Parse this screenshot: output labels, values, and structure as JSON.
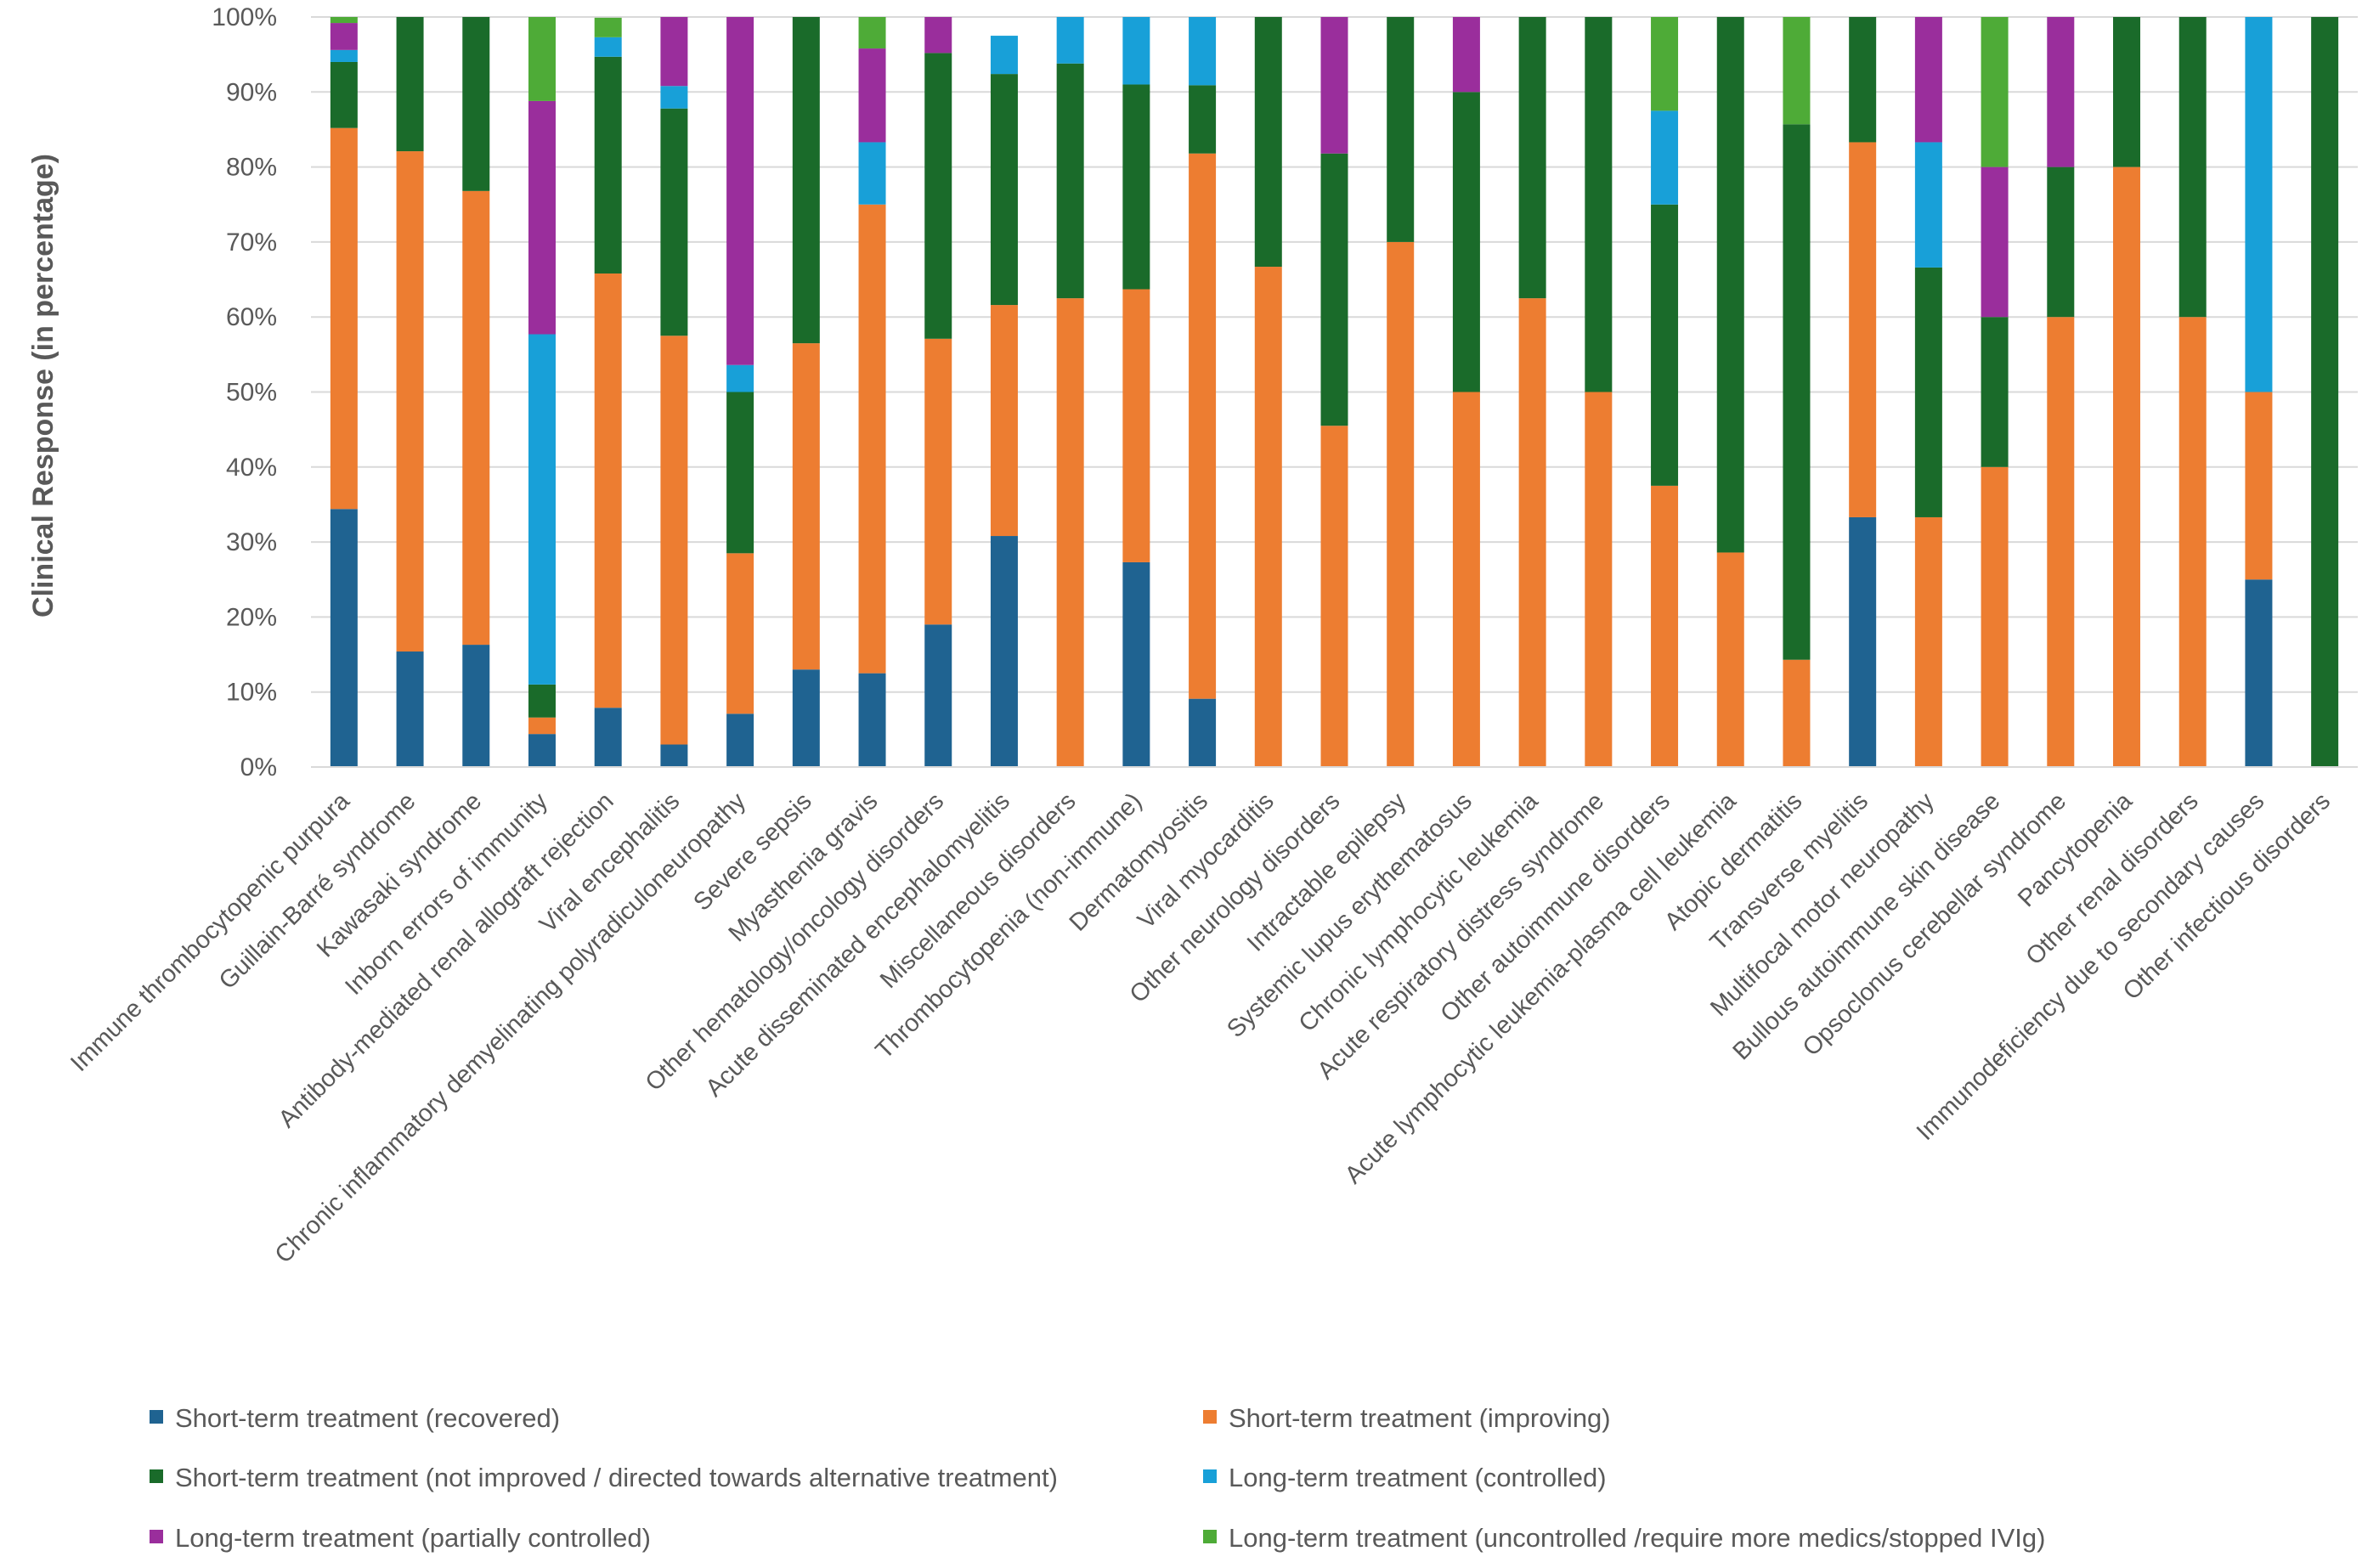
{
  "chart_data": {
    "type": "bar",
    "stacked": true,
    "title": "",
    "xlabel": "",
    "ylabel": "Clinical Response (in percentage)",
    "ylim": [
      0,
      100
    ],
    "yticks": [
      "0%",
      "10%",
      "20%",
      "30%",
      "40%",
      "50%",
      "60%",
      "70%",
      "80%",
      "90%",
      "100%"
    ],
    "legend_position": "bottom",
    "categories": [
      "Immune thrombocytopenic purpura",
      "Guillain-Barré syndrome",
      "Kawasaki syndrome",
      "Inborn errors of immunity",
      "Antibody-mediated renal allograft rejection",
      "Viral encephalitis",
      "Chronic inflammatory demyelinating polyradiculoneuropathy",
      "Severe sepsis",
      "Myasthenia gravis",
      "Other hematology/oncology disorders",
      "Acute disseminated encephalomyelitis",
      "Miscellaneous disorders",
      "Thrombocytopenia (non-immune)",
      "Dermatomyositis",
      "Viral myocarditis",
      "Other neurology disorders",
      "Intractable epilepsy",
      "Systemic lupus erythematosus",
      "Chronic lymphocytic leukemia",
      "Acute respiratory distress syndrome",
      "Other autoimmune disorders",
      "Acute lymphocytic leukemia-plasma cell leukemia",
      "Atopic dermatitis",
      "Transverse myelitis",
      "Multifocal motor neuropathy",
      "Bullous autoimmune skin disease",
      "Opsoclonus cerebellar syndrome",
      "Pancytopenia",
      "Other renal disorders",
      "Immunodeficiency due to secondary causes",
      "Other infectious disorders"
    ],
    "series": [
      {
        "name": "Short-term treatment (recovered)",
        "color": "#1F6391",
        "values": [
          34.4,
          15.4,
          16.3,
          4.4,
          7.9,
          3.0,
          7.1,
          13.0,
          12.5,
          19.0,
          30.8,
          0,
          27.3,
          9.1,
          0,
          0,
          0,
          0,
          0,
          0,
          0,
          0,
          0,
          33.3,
          0,
          0,
          0,
          0,
          0,
          25.0,
          0
        ]
      },
      {
        "name": "Short-term treatment (improving)",
        "color": "#ED7D31",
        "values": [
          50.8,
          66.7,
          60.5,
          2.2,
          57.9,
          54.5,
          21.4,
          43.5,
          62.5,
          38.1,
          30.8,
          62.5,
          36.4,
          72.7,
          66.7,
          45.5,
          70.0,
          50.0,
          62.5,
          50.0,
          37.5,
          28.6,
          14.3,
          50.0,
          33.3,
          40.0,
          60.0,
          80.0,
          60.0,
          25.0,
          0
        ]
      },
      {
        "name": "Short-term treatment (not improved / directed towards alternative treatment)",
        "color": "#1A6B2A",
        "values": [
          8.8,
          17.9,
          23.2,
          4.4,
          28.9,
          30.3,
          21.5,
          43.5,
          0,
          38.1,
          30.8,
          31.3,
          27.3,
          9.1,
          33.3,
          36.3,
          30.0,
          40.0,
          37.5,
          50.0,
          37.5,
          71.4,
          71.4,
          16.7,
          33.3,
          20.0,
          20.0,
          20.0,
          40.0,
          0,
          100
        ]
      },
      {
        "name": "Long-term treatment (controlled)",
        "color": "#18A0D8",
        "values": [
          1.6,
          0,
          0,
          46.7,
          2.6,
          3.0,
          3.6,
          0,
          8.3,
          0,
          5.1,
          6.2,
          9.0,
          9.1,
          0,
          0,
          0,
          0,
          0,
          0,
          12.5,
          0,
          0,
          0,
          16.7,
          0,
          0,
          0,
          0,
          50.0,
          0
        ]
      },
      {
        "name": "Long-term treatment (partially controlled)",
        "color": "#9A2E9C",
        "values": [
          3.6,
          0,
          0,
          31.1,
          0,
          9.2,
          46.4,
          0,
          12.5,
          4.8,
          0,
          0,
          0,
          0,
          0,
          18.2,
          0,
          10.0,
          0,
          0,
          0,
          0,
          0,
          0,
          16.7,
          20.0,
          20.0,
          0,
          0,
          0,
          0
        ]
      },
      {
        "name": "Long-term treatment (uncontrolled /require more medics/stopped IVIg)",
        "color": "#4EAB37",
        "values": [
          0.8,
          0,
          0,
          11.2,
          2.6,
          0,
          0,
          0,
          4.2,
          0,
          0,
          0,
          0,
          0,
          0,
          0,
          0,
          0,
          0,
          0,
          12.5,
          0,
          14.3,
          0,
          0,
          20.0,
          0,
          0,
          0,
          0,
          0
        ]
      }
    ]
  }
}
